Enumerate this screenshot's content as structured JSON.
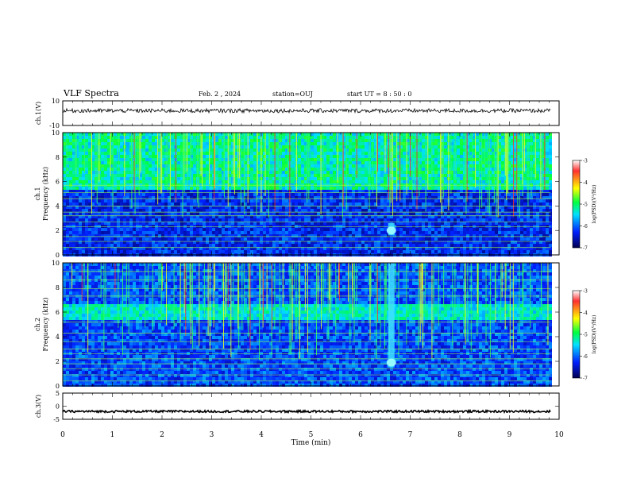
{
  "header": {
    "title": "VLF Spectra",
    "date": "Feb. 2 , 2024",
    "station": "station=OUJ",
    "start": "start UT = 8 : 50 : 0"
  },
  "chart_data": [
    {
      "type": "line",
      "panel": "ch1-waveform",
      "ylabel": "ch.1(V)",
      "ylim": [
        -10,
        10
      ],
      "yticks": [
        "10",
        "-10"
      ],
      "xlim": [
        0,
        10
      ],
      "series": [
        {
          "values_note_level": 2,
          "x_end": 9.83
        }
      ],
      "color": "#000000"
    },
    {
      "type": "heatmap",
      "panel": "ch1-spectrogram",
      "ylabel": "ch.1\nFrequency (kHz)",
      "ylabel_line1": "ch.1",
      "ylabel_line2": "Frequency (kHz)",
      "ylim": [
        0,
        10
      ],
      "yticks": [
        "0",
        "2",
        "4",
        "6",
        "8",
        "10"
      ],
      "xlim": [
        0,
        10
      ],
      "x_end": 9.83,
      "colorbar": {
        "label": "log(PSD)(V²/Hz)",
        "range": [
          -7,
          -3
        ],
        "ticks": [
          "-3",
          "-4",
          "-5",
          "-6",
          "-7"
        ],
        "colors": [
          "#ffffff",
          "#ff0000",
          "#ffff00",
          "#00ff00",
          "#00ffff",
          "#0000ff",
          "#000060"
        ]
      },
      "features": {
        "background_band_khz": [
          5.5,
          10
        ],
        "event_time_min": 6.62,
        "event_freq_khz": [
          1.6,
          2.6
        ]
      }
    },
    {
      "type": "heatmap",
      "panel": "ch2-spectrogram",
      "ylabel_line1": "ch.2",
      "ylabel_line2": "Frequency (kHz)",
      "ylim": [
        0,
        10
      ],
      "yticks": [
        "0",
        "2",
        "4",
        "6",
        "8",
        "10"
      ],
      "xlim": [
        0,
        10
      ],
      "x_end": 9.83,
      "colorbar": {
        "label": "log(PSD)(V²/Hz)",
        "range": [
          -7,
          -3
        ],
        "ticks": [
          "-3",
          "-4",
          "-5",
          "-6",
          "-7"
        ],
        "colors": [
          "#ffffff",
          "#ff0000",
          "#ffff00",
          "#00ff00",
          "#00ffff",
          "#0000ff",
          "#000060"
        ]
      },
      "features": {
        "band_khz": [
          5.6,
          6.8
        ],
        "event_time_min": 6.62,
        "event_freq_khz": [
          1.5,
          10
        ]
      }
    },
    {
      "type": "line",
      "panel": "ch3-waveform",
      "ylabel": "ch.3(V)",
      "ylim": [
        -5,
        5
      ],
      "yticks": [
        "5",
        "0",
        "-5"
      ],
      "xlim": [
        0,
        10
      ],
      "xticks": [
        "0",
        "1",
        "2",
        "3",
        "4",
        "5",
        "6",
        "7",
        "8",
        "9",
        "10"
      ],
      "xlabel": "Time (min)",
      "series": [
        {
          "values_note_level": -2,
          "x_end": 9.83
        }
      ],
      "color": "#000000"
    }
  ]
}
